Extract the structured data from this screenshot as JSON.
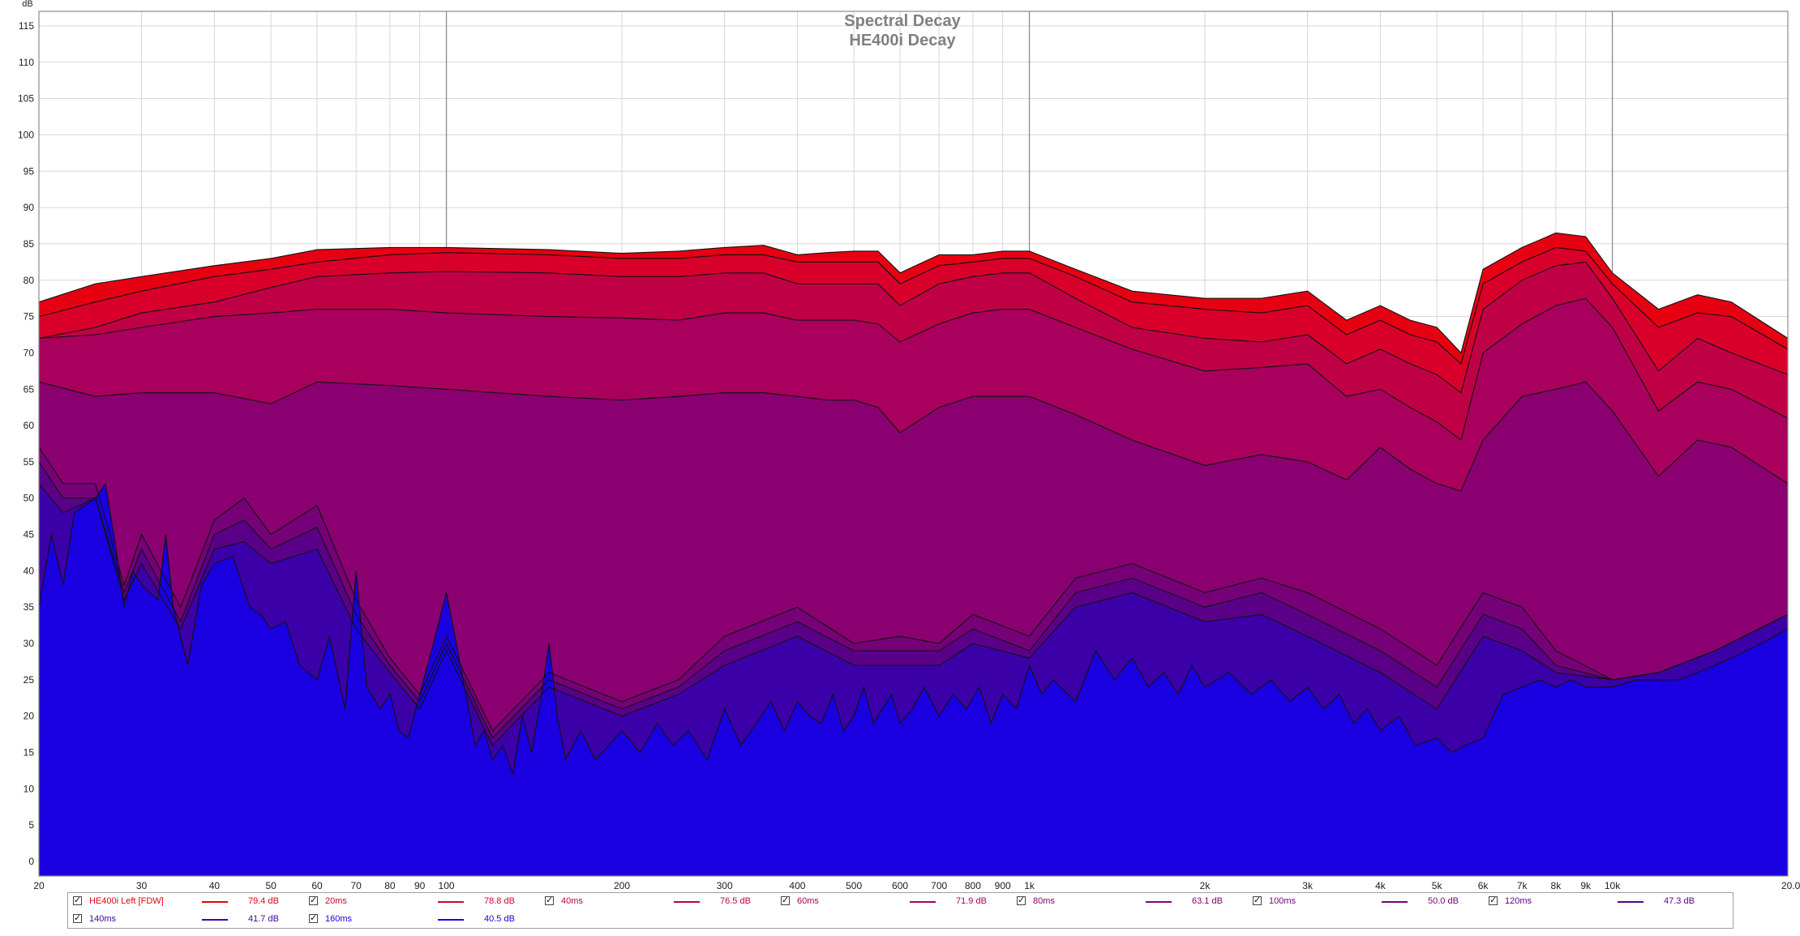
{
  "chart_data": {
    "type": "area",
    "title": "Spectral Decay",
    "subtitle": "HE400i Decay",
    "xlabel": "",
    "ylabel": "dB",
    "x_unit": "Hz",
    "x_scale": "log",
    "xlim": [
      20,
      20000
    ],
    "ylim": [
      -2,
      117
    ],
    "grid": true,
    "y_ticks": [
      0,
      5,
      10,
      15,
      20,
      25,
      30,
      35,
      40,
      45,
      50,
      55,
      60,
      65,
      70,
      75,
      80,
      85,
      90,
      95,
      100,
      105,
      110,
      115
    ],
    "x_ticks": [
      {
        "value": 20,
        "label": "20"
      },
      {
        "value": 30,
        "label": "30"
      },
      {
        "value": 40,
        "label": "40"
      },
      {
        "value": 50,
        "label": "50"
      },
      {
        "value": 60,
        "label": "60"
      },
      {
        "value": 70,
        "label": "70"
      },
      {
        "value": 80,
        "label": "80"
      },
      {
        "value": 90,
        "label": "90"
      },
      {
        "value": 100,
        "label": "100"
      },
      {
        "value": 200,
        "label": "200"
      },
      {
        "value": 300,
        "label": "300"
      },
      {
        "value": 400,
        "label": "400"
      },
      {
        "value": 500,
        "label": "500"
      },
      {
        "value": 600,
        "label": "600"
      },
      {
        "value": 700,
        "label": "700"
      },
      {
        "value": 800,
        "label": "800"
      },
      {
        "value": 900,
        "label": "900"
      },
      {
        "value": 1000,
        "label": "1k"
      },
      {
        "value": 2000,
        "label": "2k"
      },
      {
        "value": 3000,
        "label": "3k"
      },
      {
        "value": 4000,
        "label": "4k"
      },
      {
        "value": 5000,
        "label": "5k"
      },
      {
        "value": 6000,
        "label": "6k"
      },
      {
        "value": 7000,
        "label": "7k"
      },
      {
        "value": 8000,
        "label": "8k"
      },
      {
        "value": 9000,
        "label": "9k"
      },
      {
        "value": 10000,
        "label": "10k"
      },
      {
        "value": 20000,
        "label": "20.0kHz"
      }
    ],
    "series": [
      {
        "name": "HE400i Left [FDW]",
        "legend_value": "79.4 dB",
        "color": "#e60012",
        "x": [
          20,
          25,
          30,
          40,
          50,
          60,
          80,
          100,
          150,
          200,
          250,
          300,
          350,
          400,
          450,
          500,
          550,
          600,
          700,
          800,
          900,
          1000,
          1200,
          1500,
          2000,
          2500,
          3000,
          3500,
          4000,
          4500,
          5000,
          5500,
          6000,
          7000,
          8000,
          9000,
          10000,
          12000,
          14000,
          16000,
          20000
        ],
        "values": [
          77,
          79.5,
          80.5,
          82,
          83,
          84.2,
          84.5,
          84.5,
          84.2,
          83.7,
          84.0,
          84.5,
          84.8,
          83.5,
          83.8,
          84.0,
          84.0,
          81.0,
          83.5,
          83.5,
          84.0,
          84.0,
          81.5,
          78.5,
          77.5,
          77.5,
          78.5,
          74.5,
          76.5,
          74.5,
          73.5,
          70.0,
          81.5,
          84.5,
          86.5,
          86.0,
          81.0,
          76.0,
          78.0,
          77.0,
          72.0
        ]
      },
      {
        "name": "20ms",
        "legend_value": "78.8 dB",
        "color": "#d8002a",
        "x": [
          20,
          25,
          30,
          40,
          50,
          60,
          80,
          100,
          150,
          200,
          250,
          300,
          350,
          400,
          450,
          500,
          550,
          600,
          700,
          800,
          900,
          1000,
          1200,
          1500,
          2000,
          2500,
          3000,
          3500,
          4000,
          4500,
          5000,
          5500,
          6000,
          7000,
          8000,
          9000,
          10000,
          12000,
          14000,
          16000,
          20000
        ],
        "values": [
          75,
          77.0,
          78.5,
          80.5,
          81.5,
          82.5,
          83.5,
          83.8,
          83.5,
          83.0,
          83.0,
          83.5,
          83.5,
          82.5,
          82.5,
          82.5,
          82.5,
          79.5,
          82.0,
          82.5,
          83.0,
          83.0,
          80.5,
          77.0,
          76.0,
          75.5,
          76.5,
          72.5,
          74.5,
          72.5,
          71.5,
          68.5,
          79.5,
          82.5,
          84.5,
          84.0,
          79.5,
          73.5,
          75.5,
          75.0,
          70.5
        ]
      },
      {
        "name": "40ms",
        "legend_value": "76.5 dB",
        "color": "#c00045",
        "x": [
          20,
          25,
          30,
          40,
          50,
          60,
          80,
          100,
          150,
          200,
          250,
          300,
          350,
          400,
          450,
          500,
          550,
          600,
          700,
          800,
          900,
          1000,
          1200,
          1500,
          2000,
          2500,
          3000,
          3500,
          4000,
          4500,
          5000,
          5500,
          6000,
          7000,
          8000,
          9000,
          10000,
          12000,
          14000,
          16000,
          20000
        ],
        "values": [
          72,
          73.5,
          75.5,
          77.0,
          79.0,
          80.5,
          81.0,
          81.2,
          81.0,
          80.5,
          80.5,
          81.0,
          81.0,
          79.5,
          79.5,
          79.5,
          79.5,
          76.5,
          79.5,
          80.5,
          81.0,
          81.0,
          77.5,
          73.5,
          72.0,
          71.5,
          72.5,
          68.5,
          70.5,
          68.5,
          67.0,
          64.5,
          76.0,
          80.0,
          82.0,
          82.5,
          77.5,
          67.5,
          72.0,
          70.0,
          67.0
        ]
      },
      {
        "name": "60ms",
        "legend_value": "71.9 dB",
        "color": "#a8005c",
        "x": [
          20,
          25,
          30,
          40,
          50,
          60,
          80,
          100,
          150,
          200,
          250,
          300,
          350,
          400,
          450,
          500,
          550,
          600,
          700,
          800,
          900,
          1000,
          1200,
          1500,
          2000,
          2500,
          3000,
          3500,
          4000,
          4500,
          5000,
          5500,
          6000,
          7000,
          8000,
          9000,
          10000,
          12000,
          14000,
          16000,
          20000
        ],
        "values": [
          72,
          72.5,
          73.5,
          75.0,
          75.5,
          76.0,
          76.0,
          75.5,
          75.0,
          74.8,
          74.5,
          75.5,
          75.5,
          74.5,
          74.5,
          74.5,
          74.0,
          71.5,
          74.0,
          75.5,
          76.0,
          76.0,
          73.5,
          70.5,
          67.5,
          68.0,
          68.5,
          64.0,
          65.0,
          62.5,
          60.5,
          58.0,
          70.0,
          74.0,
          76.5,
          77.5,
          73.5,
          62.0,
          66.0,
          65.0,
          61.0
        ]
      },
      {
        "name": "80ms",
        "legend_value": "63.1 dB",
        "color": "#8a0070",
        "x": [
          20,
          25,
          30,
          40,
          50,
          60,
          80,
          100,
          150,
          200,
          250,
          300,
          350,
          400,
          450,
          500,
          550,
          600,
          700,
          800,
          900,
          1000,
          1200,
          1500,
          2000,
          2500,
          3000,
          3500,
          4000,
          4500,
          5000,
          5500,
          6000,
          7000,
          8000,
          9000,
          10000,
          12000,
          14000,
          16000,
          20000
        ],
        "values": [
          66,
          64.0,
          64.5,
          64.5,
          63.0,
          66.0,
          65.5,
          65.0,
          64.0,
          63.5,
          64.0,
          64.5,
          64.5,
          64.0,
          63.5,
          63.5,
          62.5,
          59.0,
          62.5,
          64.0,
          64.0,
          64.0,
          61.5,
          58.0,
          54.5,
          56.0,
          55.0,
          52.5,
          57.0,
          54.0,
          52.0,
          51.0,
          58.0,
          64.0,
          65.0,
          66.0,
          62.0,
          53.0,
          58.0,
          57.0,
          52.0
        ]
      },
      {
        "name": "100ms",
        "legend_value": "50.0 dB",
        "color": "#760078",
        "x": [
          20,
          22,
          25,
          28,
          30,
          35,
          40,
          45,
          50,
          60,
          70,
          80,
          90,
          100,
          120,
          150,
          200,
          250,
          300,
          400,
          500,
          600,
          700,
          800,
          1000,
          1200,
          1500,
          2000,
          2500,
          3000,
          4000,
          5000,
          6000,
          7000,
          8000,
          10000,
          12000,
          15000,
          20000
        ],
        "values": [
          57,
          52,
          52,
          38,
          45,
          35,
          47,
          50,
          45,
          49,
          36,
          28,
          23,
          31,
          18,
          26,
          22,
          25,
          31,
          35,
          30,
          31,
          30,
          34,
          31,
          39,
          41,
          37,
          39,
          37,
          32,
          27,
          37,
          35,
          29,
          25,
          26,
          29,
          34
        ]
      },
      {
        "name": "120ms",
        "legend_value": "47.3 dB",
        "color": "#5a0088",
        "x": [
          20,
          22,
          25,
          28,
          30,
          35,
          40,
          45,
          50,
          60,
          70,
          80,
          90,
          100,
          120,
          150,
          200,
          250,
          300,
          400,
          500,
          600,
          700,
          800,
          1000,
          1200,
          1500,
          2000,
          2500,
          3000,
          4000,
          5000,
          6000,
          7000,
          8000,
          10000,
          12000,
          15000,
          20000
        ],
        "values": [
          55,
          50,
          50,
          37,
          43,
          33,
          45,
          47,
          43,
          46,
          34,
          27,
          22,
          30,
          17,
          25,
          21,
          24,
          29,
          33,
          29,
          29,
          29,
          32,
          29,
          37,
          39,
          35,
          37,
          34,
          29,
          24,
          34,
          32,
          27,
          25,
          26,
          29,
          34
        ]
      },
      {
        "name": "140ms",
        "legend_value": "41.7 dB",
        "color": "#3c00a8",
        "x": [
          20,
          22,
          25,
          28,
          30,
          35,
          40,
          45,
          50,
          60,
          70,
          80,
          90,
          100,
          120,
          150,
          200,
          250,
          300,
          400,
          500,
          600,
          700,
          800,
          1000,
          1200,
          1500,
          2000,
          2500,
          3000,
          4000,
          5000,
          6000,
          7000,
          8000,
          10000,
          12000,
          15000,
          20000
        ],
        "values": [
          52,
          48,
          50,
          36,
          41,
          32,
          43,
          44,
          41,
          43,
          32,
          26,
          21,
          29,
          16,
          24,
          20,
          23,
          27,
          31,
          27,
          27,
          27,
          30,
          28,
          35,
          37,
          33,
          34,
          31,
          26,
          21,
          31,
          29,
          26,
          25,
          26,
          29,
          34
        ]
      },
      {
        "name": "160ms",
        "legend_value": "40.5 dB",
        "color": "#1a00e0",
        "x": [
          20,
          21,
          22,
          23,
          25,
          26,
          27,
          28,
          29,
          30,
          32,
          33,
          34,
          36,
          38,
          40,
          43,
          46,
          48,
          50,
          53,
          56,
          60,
          63,
          67,
          70,
          73,
          77,
          80,
          83,
          86,
          90,
          95,
          100,
          104,
          108,
          112,
          116,
          120,
          125,
          130,
          135,
          140,
          145,
          150,
          155,
          160,
          170,
          180,
          190,
          200,
          215,
          230,
          245,
          260,
          280,
          300,
          320,
          340,
          360,
          380,
          400,
          420,
          440,
          460,
          480,
          500,
          520,
          540,
          560,
          580,
          600,
          630,
          660,
          700,
          740,
          780,
          820,
          860,
          900,
          950,
          1000,
          1050,
          1100,
          1200,
          1300,
          1400,
          1500,
          1600,
          1700,
          1800,
          1900,
          2000,
          2200,
          2400,
          2600,
          2800,
          3000,
          3200,
          3400,
          3600,
          3800,
          4000,
          4300,
          4600,
          5000,
          5300,
          5600,
          6000,
          6500,
          7000,
          7500,
          8000,
          8500,
          9000,
          10000,
          11000,
          12000,
          13000,
          14000,
          15000,
          16000,
          17000,
          18000,
          19000,
          20000
        ],
        "values": [
          35,
          45,
          38,
          48,
          50,
          52,
          44,
          35,
          40,
          38,
          36,
          45,
          35,
          27,
          38,
          41,
          42,
          35,
          34,
          32,
          33,
          27,
          25,
          31,
          21,
          40,
          24,
          21,
          23,
          18,
          17,
          23,
          30,
          37,
          30,
          23,
          16,
          18,
          14,
          16,
          12,
          20,
          15,
          22,
          30,
          20,
          14,
          18,
          14,
          16,
          18,
          15,
          19,
          16,
          18,
          14,
          21,
          16,
          19,
          22,
          18,
          22,
          20,
          19,
          23,
          18,
          20,
          24,
          19,
          21,
          23,
          19,
          21,
          24,
          20,
          23,
          21,
          24,
          19,
          23,
          21,
          27,
          23,
          25,
          22,
          29,
          25,
          28,
          24,
          26,
          23,
          27,
          24,
          26,
          23,
          25,
          22,
          24,
          21,
          23,
          19,
          21,
          18,
          20,
          16,
          17,
          15,
          16,
          17,
          23,
          24,
          25,
          24,
          25,
          24,
          24,
          25,
          25,
          25,
          26,
          27,
          28,
          29,
          30,
          31,
          32
        ]
      }
    ]
  },
  "colors": {
    "background": "#ffffff",
    "grid_major": "#8c8c8c",
    "grid_minor": "#d6d6d6",
    "outline": "#111111",
    "title_text": "#808080",
    "axis_text": "#202020"
  }
}
